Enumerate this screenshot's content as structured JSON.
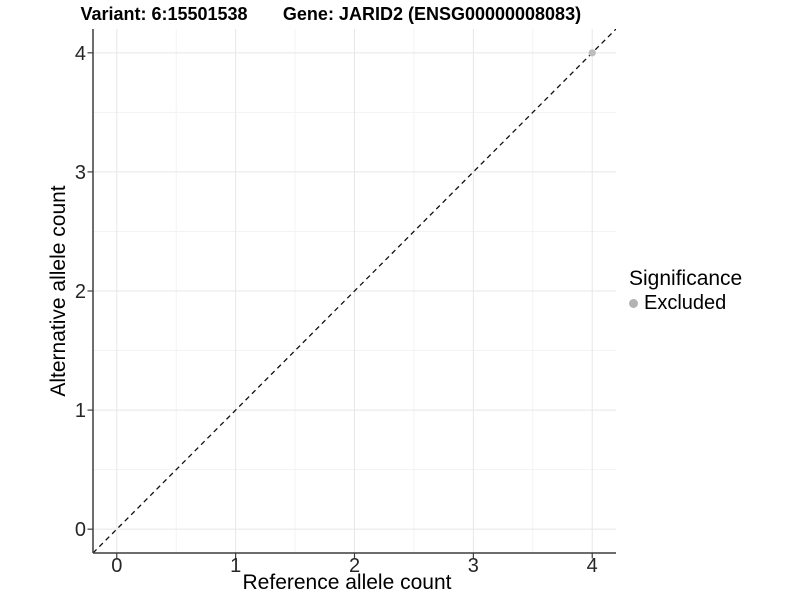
{
  "header": {
    "title_variant": "Variant: 6:15501538",
    "title_gene": "Gene: JARID2 (ENSG00000008083)"
  },
  "chart_data": {
    "type": "scatter",
    "title": "Variant: 6:15501538   Gene: JARID2 (ENSG00000008083)",
    "xlabel": "Reference allele count",
    "ylabel": "Alternative allele count",
    "xlim": [
      -0.2,
      4.2
    ],
    "ylim": [
      -0.2,
      4.2
    ],
    "xticks": [
      0,
      1,
      2,
      3,
      4
    ],
    "yticks": [
      0,
      1,
      2,
      3,
      4
    ],
    "x_minor_ticks": [
      0.5,
      1.5,
      2.5,
      3.5
    ],
    "y_minor_ticks": [
      0.5,
      1.5,
      2.5,
      3.5
    ],
    "grid": "major and minor gridlines on white background",
    "legend_position": "right",
    "series": [
      {
        "name": "Excluded",
        "color": "#bdbdbd",
        "points": [
          {
            "x": 4,
            "y": 4
          }
        ]
      }
    ],
    "reference_line": {
      "kind": "identity y = x",
      "style": "dashed",
      "color": "#111111"
    },
    "legend": {
      "title": "Significance",
      "entries": [
        {
          "label": "Excluded",
          "color": "#b3b3b3",
          "marker": "circle"
        }
      ]
    }
  },
  "colors": {
    "background": "#ffffff",
    "grid_major": "#e7e7e7",
    "grid_minor": "#f3f3f3",
    "axis_line": "#3d3d3d",
    "tick_text": "#262626"
  }
}
